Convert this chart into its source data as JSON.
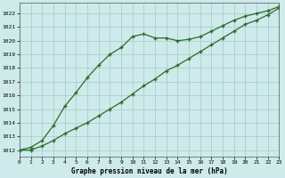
{
  "xlabel": "Graphe pression niveau de la mer (hPa)",
  "hours": [
    0,
    1,
    2,
    3,
    4,
    5,
    6,
    7,
    8,
    9,
    10,
    11,
    12,
    13,
    14,
    15,
    16,
    17,
    18,
    19,
    20,
    21,
    22,
    23
  ],
  "line1": [
    1012.0,
    1012.2,
    1012.7,
    1013.8,
    1015.2,
    1016.2,
    1017.3,
    1018.2,
    1019.0,
    1019.5,
    1020.3,
    1020.5,
    1020.2,
    1020.2,
    1020.0,
    1020.1,
    1020.3,
    1020.7,
    1021.1,
    1021.5,
    1021.8,
    1022.0,
    1022.2,
    1022.5
  ],
  "line2": [
    1012.0,
    1012.0,
    1012.3,
    1012.7,
    1013.2,
    1013.6,
    1014.0,
    1014.5,
    1015.0,
    1015.5,
    1016.1,
    1016.7,
    1017.2,
    1017.8,
    1018.2,
    1018.7,
    1019.2,
    1019.7,
    1020.2,
    1020.7,
    1021.2,
    1021.5,
    1021.9,
    1022.4
  ],
  "line_color": "#2d6a2d",
  "bg_color": "#ceeaea",
  "grid_color": "#aacfcf",
  "ylim_min": 1011.5,
  "ylim_max": 1022.8,
  "yticks": [
    1012,
    1013,
    1014,
    1015,
    1016,
    1017,
    1018,
    1019,
    1020,
    1021,
    1022
  ],
  "xlim_min": 0,
  "xlim_max": 23
}
